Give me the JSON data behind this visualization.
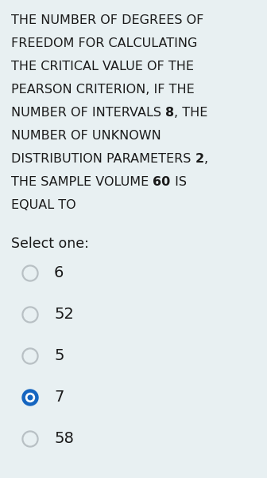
{
  "background_color": "#e8f0f2",
  "text_color": "#1a1a1a",
  "select_label": "Select one:",
  "options": [
    "6",
    "52",
    "5",
    "7",
    "58"
  ],
  "selected_index": 3,
  "radio_color_border_default": "#b8c0c4",
  "radio_color_selected": "#1565c0",
  "font_size_question": 11.5,
  "font_size_select": 12.5,
  "font_size_option": 14,
  "line_parts": [
    [
      [
        "THE NUMBER OF DEGREES OF",
        false
      ]
    ],
    [
      [
        "FREEDOM FOR CALCULATING",
        false
      ]
    ],
    [
      [
        "THE CRITICAL VALUE OF THE",
        false
      ]
    ],
    [
      [
        "PEARSON CRITERION, IF THE",
        false
      ]
    ],
    [
      [
        "NUMBER OF INTERVALS ",
        false
      ],
      [
        "8",
        true
      ],
      [
        ", THE",
        false
      ]
    ],
    [
      [
        "NUMBER OF UNKNOWN",
        false
      ]
    ],
    [
      [
        "DISTRIBUTION PARAMETERS ",
        false
      ],
      [
        "2",
        true
      ],
      [
        ",",
        false
      ]
    ],
    [
      [
        "THE SAMPLE VOLUME ",
        false
      ],
      [
        "60",
        true
      ],
      [
        " IS",
        false
      ]
    ],
    [
      [
        "EQUAL TO",
        false
      ]
    ]
  ]
}
